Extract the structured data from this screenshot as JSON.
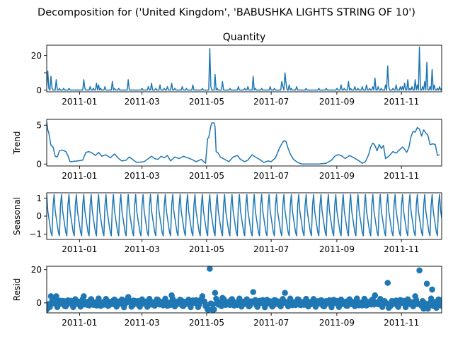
{
  "figure": {
    "title": "Decomposition for ('United Kingdom', 'BABUSHKA LIGHTS STRING OF 10')",
    "line_color": "#1f77b4",
    "marker_color": "#1f77b4"
  },
  "chart_data": [
    {
      "type": "line",
      "title": "Quantity",
      "ylabel": "",
      "xlabel": "",
      "x_range": [
        "2010-12-01",
        "2011-12-09"
      ],
      "ylim": [
        -1,
        26
      ],
      "yticks": [
        0,
        10,
        20
      ],
      "ytick_labels": [
        "0",
        "",
        "20"
      ],
      "xtick_labels": [
        "2011-01",
        "2011-03",
        "2011-05",
        "2011-07",
        "2011-09",
        "2011-11"
      ],
      "baseline": 0,
      "spikes": [
        [
          "2010-12-01",
          2
        ],
        [
          "2010-12-02",
          11
        ],
        [
          "2010-12-03",
          1
        ],
        [
          "2010-12-05",
          8
        ],
        [
          "2010-12-06",
          1
        ],
        [
          "2010-12-10",
          6
        ],
        [
          "2010-12-13",
          1
        ],
        [
          "2010-12-17",
          1
        ],
        [
          "2010-12-22",
          1
        ],
        [
          "2011-01-05",
          6
        ],
        [
          "2011-01-06",
          1
        ],
        [
          "2011-01-11",
          2
        ],
        [
          "2011-01-14",
          1
        ],
        [
          "2011-01-17",
          4
        ],
        [
          "2011-01-19",
          3
        ],
        [
          "2011-01-21",
          1
        ],
        [
          "2011-01-25",
          2
        ],
        [
          "2011-02-01",
          5
        ],
        [
          "2011-02-03",
          1
        ],
        [
          "2011-02-07",
          1
        ],
        [
          "2011-02-16",
          6
        ],
        [
          "2011-03-01",
          1
        ],
        [
          "2011-03-07",
          2
        ],
        [
          "2011-03-10",
          4
        ],
        [
          "2011-03-14",
          1
        ],
        [
          "2011-03-18",
          3
        ],
        [
          "2011-03-22",
          1
        ],
        [
          "2011-03-25",
          2
        ],
        [
          "2011-03-29",
          4
        ],
        [
          "2011-04-01",
          1
        ],
        [
          "2011-04-08",
          2
        ],
        [
          "2011-04-12",
          1
        ],
        [
          "2011-04-18",
          3
        ],
        [
          "2011-04-27",
          1
        ],
        [
          "2011-05-04",
          24
        ],
        [
          "2011-05-05",
          2
        ],
        [
          "2011-05-09",
          9
        ],
        [
          "2011-05-11",
          1
        ],
        [
          "2011-05-16",
          5
        ],
        [
          "2011-05-23",
          1
        ],
        [
          "2011-05-31",
          2
        ],
        [
          "2011-06-06",
          1
        ],
        [
          "2011-06-09",
          2
        ],
        [
          "2011-06-14",
          8
        ],
        [
          "2011-06-16",
          1
        ],
        [
          "2011-06-22",
          1
        ],
        [
          "2011-06-30",
          2
        ],
        [
          "2011-07-04",
          1
        ],
        [
          "2011-07-11",
          5
        ],
        [
          "2011-07-12",
          2
        ],
        [
          "2011-07-14",
          10
        ],
        [
          "2011-07-15",
          4
        ],
        [
          "2011-07-18",
          3
        ],
        [
          "2011-07-20",
          1
        ],
        [
          "2011-07-25",
          2
        ],
        [
          "2011-08-03",
          1
        ],
        [
          "2011-08-15",
          1
        ],
        [
          "2011-08-22",
          1
        ],
        [
          "2011-09-01",
          1
        ],
        [
          "2011-09-05",
          3
        ],
        [
          "2011-09-08",
          1
        ],
        [
          "2011-09-12",
          5
        ],
        [
          "2011-09-14",
          1
        ],
        [
          "2011-09-18",
          2
        ],
        [
          "2011-09-21",
          1
        ],
        [
          "2011-09-25",
          2
        ],
        [
          "2011-09-29",
          3
        ],
        [
          "2011-10-02",
          1
        ],
        [
          "2011-10-05",
          2
        ],
        [
          "2011-10-07",
          7
        ],
        [
          "2011-10-10",
          2
        ],
        [
          "2011-10-13",
          1
        ],
        [
          "2011-10-17",
          3
        ],
        [
          "2011-10-19",
          14
        ],
        [
          "2011-10-20",
          2
        ],
        [
          "2011-10-24",
          1
        ],
        [
          "2011-10-27",
          3
        ],
        [
          "2011-10-31",
          2
        ],
        [
          "2011-11-02",
          2
        ],
        [
          "2011-11-04",
          4
        ],
        [
          "2011-11-07",
          6
        ],
        [
          "2011-11-09",
          1
        ],
        [
          "2011-11-11",
          2
        ],
        [
          "2011-11-14",
          6
        ],
        [
          "2011-11-16",
          3
        ],
        [
          "2011-11-18",
          25
        ],
        [
          "2011-11-21",
          2
        ],
        [
          "2011-11-23",
          5
        ],
        [
          "2011-11-25",
          16
        ],
        [
          "2011-11-28",
          2
        ],
        [
          "2011-11-30",
          12
        ],
        [
          "2011-12-02",
          3
        ],
        [
          "2011-12-05",
          1
        ],
        [
          "2011-12-07",
          2
        ],
        [
          "2011-12-09",
          1
        ]
      ]
    },
    {
      "type": "line",
      "title": "",
      "ylabel": "Trend",
      "xlabel": "",
      "x_range": [
        "2010-12-01",
        "2011-12-09"
      ],
      "ylim": [
        -0.25,
        5.75
      ],
      "yticks": [
        0,
        5
      ],
      "ytick_labels": [
        "0",
        "5"
      ],
      "xtick_labels": [
        "2011-01",
        "2011-03",
        "2011-05",
        "2011-07",
        "2011-09",
        "2011-11"
      ],
      "points": [
        [
          "2010-12-01",
          5.4
        ],
        [
          "2010-12-02",
          4.4
        ],
        [
          "2010-12-03",
          4.0
        ],
        [
          "2010-12-05",
          2.4
        ],
        [
          "2010-12-07",
          2.2
        ],
        [
          "2010-12-09",
          1.0
        ],
        [
          "2010-12-11",
          0.9
        ],
        [
          "2010-12-13",
          1.7
        ],
        [
          "2010-12-16",
          1.8
        ],
        [
          "2010-12-19",
          1.6
        ],
        [
          "2010-12-21",
          1.1
        ],
        [
          "2010-12-23",
          0.3
        ],
        [
          "2010-12-30",
          0.4
        ],
        [
          "2011-01-04",
          0.5
        ],
        [
          "2011-01-07",
          1.5
        ],
        [
          "2011-01-10",
          1.6
        ],
        [
          "2011-01-13",
          1.4
        ],
        [
          "2011-01-16",
          1.1
        ],
        [
          "2011-01-19",
          1.5
        ],
        [
          "2011-01-22",
          1.0
        ],
        [
          "2011-01-26",
          1.2
        ],
        [
          "2011-01-30",
          0.8
        ],
        [
          "2011-02-03",
          1.3
        ],
        [
          "2011-02-07",
          0.7
        ],
        [
          "2011-02-10",
          0.4
        ],
        [
          "2011-02-14",
          0.5
        ],
        [
          "2011-02-17",
          0.9
        ],
        [
          "2011-02-20",
          0.6
        ],
        [
          "2011-02-24",
          0.2
        ],
        [
          "2011-03-03",
          0.3
        ],
        [
          "2011-03-07",
          0.7
        ],
        [
          "2011-03-10",
          1.0
        ],
        [
          "2011-03-13",
          0.7
        ],
        [
          "2011-03-16",
          0.6
        ],
        [
          "2011-03-19",
          1.0
        ],
        [
          "2011-03-22",
          0.8
        ],
        [
          "2011-03-25",
          1.1
        ],
        [
          "2011-03-28",
          0.4
        ],
        [
          "2011-04-01",
          0.9
        ],
        [
          "2011-04-05",
          0.7
        ],
        [
          "2011-04-09",
          1.0
        ],
        [
          "2011-04-13",
          0.8
        ],
        [
          "2011-04-17",
          0.6
        ],
        [
          "2011-04-21",
          0.3
        ],
        [
          "2011-04-26",
          0.6
        ],
        [
          "2011-04-30",
          0.1
        ],
        [
          "2011-05-02",
          3.3
        ],
        [
          "2011-05-03",
          3.4
        ],
        [
          "2011-05-05",
          4.9
        ],
        [
          "2011-05-06",
          5.3
        ],
        [
          "2011-05-08",
          5.3
        ],
        [
          "2011-05-09",
          4.8
        ],
        [
          "2011-05-10",
          1.6
        ],
        [
          "2011-05-12",
          1.4
        ],
        [
          "2011-05-14",
          0.9
        ],
        [
          "2011-05-18",
          0.6
        ],
        [
          "2011-05-22",
          0.3
        ],
        [
          "2011-05-26",
          0.9
        ],
        [
          "2011-05-30",
          1.1
        ],
        [
          "2011-06-02",
          0.6
        ],
        [
          "2011-06-06",
          0.3
        ],
        [
          "2011-06-09",
          0.5
        ],
        [
          "2011-06-13",
          1.2
        ],
        [
          "2011-06-16",
          0.9
        ],
        [
          "2011-06-20",
          0.6
        ],
        [
          "2011-06-24",
          0.2
        ],
        [
          "2011-06-28",
          0.4
        ],
        [
          "2011-07-01",
          0.3
        ],
        [
          "2011-07-05",
          0.8
        ],
        [
          "2011-07-09",
          2.1
        ],
        [
          "2011-07-11",
          2.6
        ],
        [
          "2011-07-13",
          3.0
        ],
        [
          "2011-07-15",
          2.9
        ],
        [
          "2011-07-17",
          2.0
        ],
        [
          "2011-07-19",
          1.3
        ],
        [
          "2011-07-22",
          0.6
        ],
        [
          "2011-07-26",
          0.2
        ],
        [
          "2011-07-30",
          0.0
        ],
        [
          "2011-08-15",
          0.0
        ],
        [
          "2011-08-22",
          0.1
        ],
        [
          "2011-08-27",
          0.5
        ],
        [
          "2011-08-30",
          1.0
        ],
        [
          "2011-09-02",
          1.2
        ],
        [
          "2011-09-05",
          1.1
        ],
        [
          "2011-09-09",
          0.7
        ],
        [
          "2011-09-13",
          1.1
        ],
        [
          "2011-09-17",
          0.8
        ],
        [
          "2011-09-21",
          0.5
        ],
        [
          "2011-09-25",
          0.1
        ],
        [
          "2011-09-28",
          0.3
        ],
        [
          "2011-10-01",
          1.2
        ],
        [
          "2011-10-03",
          2.2
        ],
        [
          "2011-10-05",
          2.7
        ],
        [
          "2011-10-07",
          2.4
        ],
        [
          "2011-10-09",
          1.7
        ],
        [
          "2011-10-11",
          2.5
        ],
        [
          "2011-10-13",
          2.0
        ],
        [
          "2011-10-15",
          2.4
        ],
        [
          "2011-10-17",
          0.7
        ],
        [
          "2011-10-20",
          1.0
        ],
        [
          "2011-10-24",
          1.6
        ],
        [
          "2011-10-27",
          1.4
        ],
        [
          "2011-10-30",
          1.8
        ],
        [
          "2011-11-02",
          2.2
        ],
        [
          "2011-11-04",
          1.9
        ],
        [
          "2011-11-06",
          1.5
        ],
        [
          "2011-11-08",
          2.1
        ],
        [
          "2011-11-10",
          3.5
        ],
        [
          "2011-11-12",
          4.2
        ],
        [
          "2011-11-14",
          4.1
        ],
        [
          "2011-11-16",
          4.7
        ],
        [
          "2011-11-18",
          4.5
        ],
        [
          "2011-11-20",
          3.6
        ],
        [
          "2011-11-22",
          4.4
        ],
        [
          "2011-11-24",
          4.0
        ],
        [
          "2011-11-26",
          3.7
        ],
        [
          "2011-11-28",
          2.5
        ],
        [
          "2011-12-01",
          2.6
        ],
        [
          "2011-12-03",
          2.5
        ],
        [
          "2011-12-05",
          1.1
        ],
        [
          "2011-12-07",
          1.2
        ]
      ]
    },
    {
      "type": "line",
      "title": "",
      "ylabel": "Seasonal",
      "xlabel": "",
      "x_range": [
        "2010-12-01",
        "2011-12-09"
      ],
      "ylim": [
        -1.3,
        1.3
      ],
      "yticks": [
        -1,
        0,
        1
      ],
      "ytick_labels": [
        "−1",
        "0",
        "1"
      ],
      "xtick_labels": [
        "2011-01",
        "2011-03",
        "2011-05",
        "2011-07",
        "2011-09",
        "2011-11"
      ],
      "period_days": 7,
      "weekly_pattern": [
        1.2,
        0.3,
        -0.1,
        -0.5,
        -0.9,
        -1.1,
        0.6
      ]
    },
    {
      "type": "scatter",
      "title": "",
      "ylabel": "Resid",
      "xlabel": "",
      "x_range": [
        "2010-12-01",
        "2011-12-09"
      ],
      "ylim": [
        -6,
        22
      ],
      "yticks": [
        0,
        20
      ],
      "ytick_labels": [
        "0",
        "20"
      ],
      "xtick_labels": [
        "2011-01",
        "2011-03",
        "2011-05",
        "2011-07",
        "2011-09",
        "2011-11"
      ],
      "baseline": 0,
      "outliers": [
        [
          "2010-12-01",
          -4
        ],
        [
          "2010-12-02",
          -3
        ],
        [
          "2010-12-05",
          4
        ],
        [
          "2010-12-10",
          4
        ],
        [
          "2011-01-05",
          4
        ],
        [
          "2011-02-16",
          3.5
        ],
        [
          "2011-03-29",
          4.5
        ],
        [
          "2011-04-27",
          4
        ],
        [
          "2011-05-02",
          -4
        ],
        [
          "2011-05-03",
          -4
        ],
        [
          "2011-05-04",
          20.5
        ],
        [
          "2011-05-06",
          -4
        ],
        [
          "2011-05-08",
          -4
        ],
        [
          "2011-05-09",
          6
        ],
        [
          "2011-05-16",
          3
        ],
        [
          "2011-06-14",
          6.5
        ],
        [
          "2011-07-14",
          6
        ],
        [
          "2011-10-07",
          4.5
        ],
        [
          "2011-10-19",
          12
        ],
        [
          "2011-10-20",
          -3
        ],
        [
          "2011-11-18",
          19.5
        ],
        [
          "2011-11-25",
          11.5
        ],
        [
          "2011-11-30",
          8
        ],
        [
          "2011-11-14",
          4
        ],
        [
          "2011-11-22",
          -3.5
        ],
        [
          "2011-11-26",
          -3.5
        ],
        [
          "2011-12-04",
          -3
        ]
      ]
    }
  ]
}
